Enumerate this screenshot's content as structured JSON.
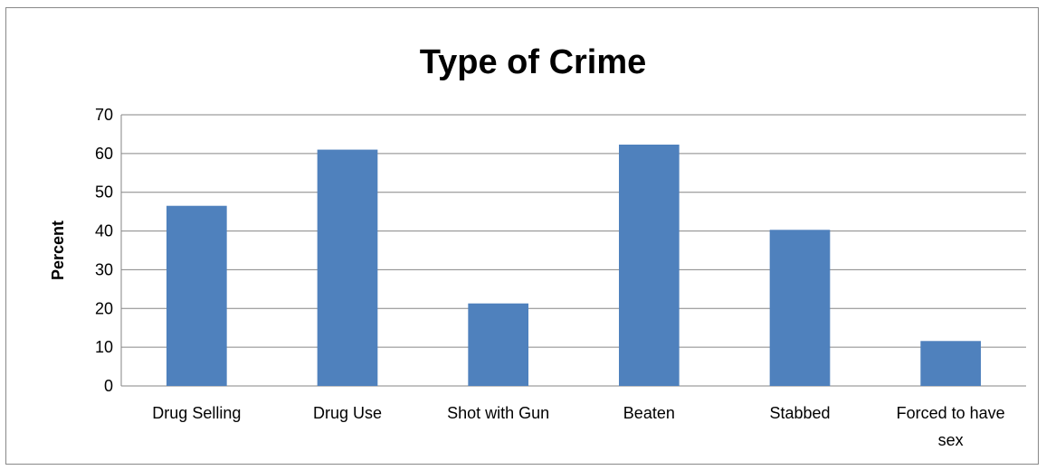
{
  "chart_data": {
    "type": "bar",
    "title": "Type of Crime",
    "xlabel": "",
    "ylabel": "Percent",
    "ylim": [
      0,
      70
    ],
    "yticks": [
      0,
      10,
      20,
      30,
      40,
      50,
      60,
      70
    ],
    "grid": true,
    "legend": "none",
    "bar_color": "#4F81BD",
    "categories": [
      [
        "Drug Selling"
      ],
      [
        "Drug Use"
      ],
      [
        "Shot with Gun"
      ],
      [
        "Beaten"
      ],
      [
        "Stabbed"
      ],
      [
        "Forced to have",
        "sex"
      ]
    ],
    "values": [
      46.5,
      61,
      21.3,
      62.3,
      40.3,
      11.6
    ]
  }
}
